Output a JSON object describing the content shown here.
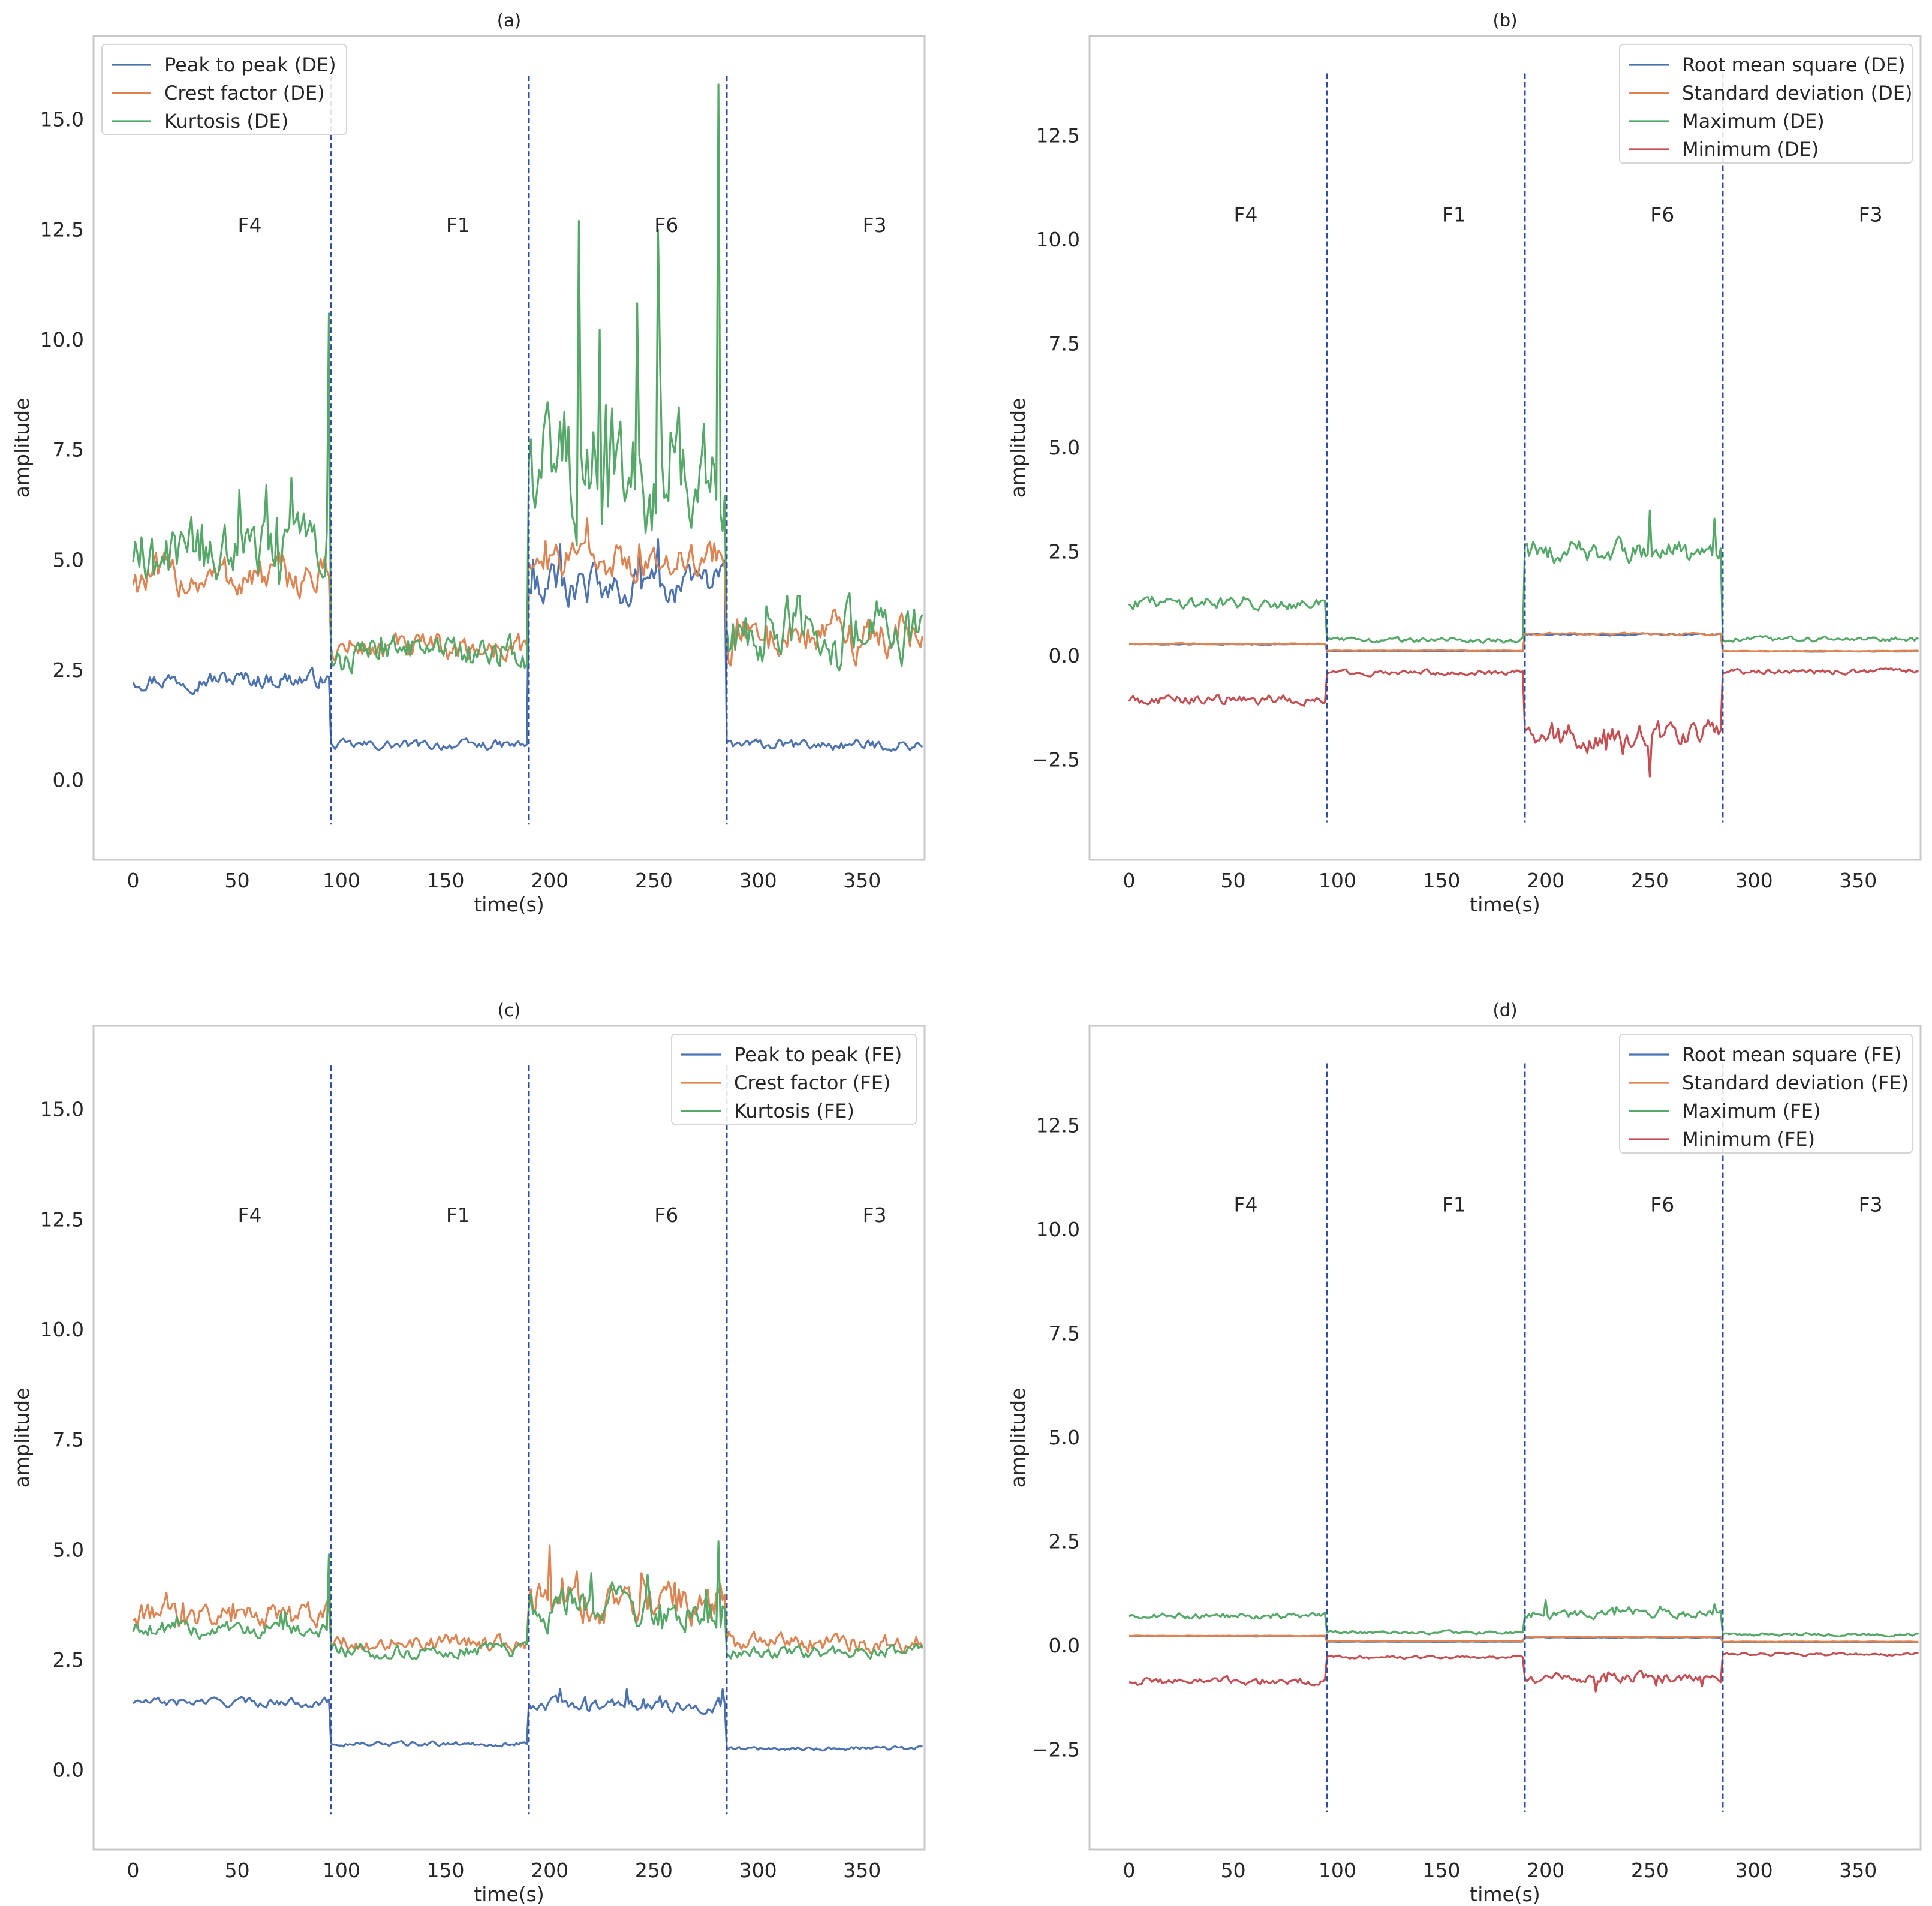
{
  "chart_data": [
    {
      "type": "line",
      "panel": "a",
      "title": "(a)",
      "xlabel": "time(s)",
      "ylabel": "amplitude",
      "xlim": [
        -19,
        380
      ],
      "ylim": [
        -1.8,
        16.9
      ],
      "xticks": [
        0,
        50,
        100,
        150,
        200,
        250,
        300,
        350
      ],
      "yticks": [
        0.0,
        2.5,
        5.0,
        7.5,
        10.0,
        12.5,
        15.0
      ],
      "ytick_labels": [
        "0.0",
        "2.5",
        "5.0",
        "7.5",
        "10.0",
        "12.5",
        "15.0"
      ],
      "legend_position": "upper-left",
      "grid": false,
      "segment_boundaries": [
        95,
        190,
        285
      ],
      "boundary_range": [
        -1.0,
        16.0
      ],
      "segment_labels": [
        {
          "label": "F4",
          "x": 56,
          "y": 12.6
        },
        {
          "label": "F1",
          "x": 156,
          "y": 12.6
        },
        {
          "label": "F6",
          "x": 256,
          "y": 12.6
        },
        {
          "label": "F3",
          "x": 356,
          "y": 12.6
        }
      ],
      "series": [
        {
          "name": "Peak to peak (DE)",
          "color": "#4c72b0",
          "segments": [
            {
              "mean": 2.3,
              "noise": 0.17,
              "spike": 0
            },
            {
              "mean": 0.8,
              "noise": 0.09,
              "spike": 0
            },
            {
              "mean": 4.4,
              "noise": 0.35,
              "spike": 0.6
            },
            {
              "mean": 0.8,
              "noise": 0.1,
              "spike": 0
            }
          ]
        },
        {
          "name": "Crest factor (DE)",
          "color": "#dd8452",
          "segments": [
            {
              "mean": 4.6,
              "noise": 0.38,
              "spike": 0
            },
            {
              "mean": 3.0,
              "noise": 0.25,
              "spike": 0
            },
            {
              "mean": 5.0,
              "noise": 0.32,
              "spike": 0.8
            },
            {
              "mean": 3.3,
              "noise": 0.42,
              "spike": 0
            }
          ]
        },
        {
          "name": "Kurtosis (DE)",
          "color": "#55a868",
          "segments": [
            {
              "mean": 5.2,
              "noise": 0.55,
              "spike": 1.2
            },
            {
              "mean": 2.9,
              "noise": 0.3,
              "spike": 0.3
            },
            {
              "mean": 7.2,
              "noise": 1.2,
              "spike": 6.0
            },
            {
              "mean": 3.4,
              "noise": 0.55,
              "spike": 0.8
            }
          ],
          "peaks": [
            {
              "x": 94,
              "y": 10.6
            },
            {
              "x": 281,
              "y": 15.8
            },
            {
              "x": 252,
              "y": 12.5
            },
            {
              "x": 214,
              "y": 12.7
            }
          ]
        }
      ]
    },
    {
      "type": "line",
      "panel": "b",
      "title": "(b)",
      "xlabel": "time(s)",
      "ylabel": "amplitude",
      "xlim": [
        -19,
        380
      ],
      "ylim": [
        -4.9,
        14.9
      ],
      "xticks": [
        0,
        50,
        100,
        150,
        200,
        250,
        300,
        350
      ],
      "yticks": [
        -2.5,
        0.0,
        2.5,
        5.0,
        7.5,
        10.0,
        12.5
      ],
      "ytick_labels": [
        "−2.5",
        "0.0",
        "2.5",
        "5.0",
        "7.5",
        "10.0",
        "12.5"
      ],
      "legend_position": "upper-right",
      "grid": false,
      "segment_boundaries": [
        95,
        190,
        285
      ],
      "boundary_range": [
        -4.0,
        14.0
      ],
      "segment_labels": [
        {
          "label": "F4",
          "x": 56,
          "y": 10.6
        },
        {
          "label": "F1",
          "x": 156,
          "y": 10.6
        },
        {
          "label": "F6",
          "x": 256,
          "y": 10.6
        },
        {
          "label": "F3",
          "x": 356,
          "y": 10.6
        }
      ],
      "series": [
        {
          "name": "Root mean square (DE)",
          "color": "#4c72b0",
          "segments": [
            {
              "mean": 0.28,
              "noise": 0.01,
              "spike": 0
            },
            {
              "mean": 0.12,
              "noise": 0.005,
              "spike": 0
            },
            {
              "mean": 0.52,
              "noise": 0.02,
              "spike": 0
            },
            {
              "mean": 0.11,
              "noise": 0.005,
              "spike": 0
            }
          ]
        },
        {
          "name": "Standard deviation (DE)",
          "color": "#dd8452",
          "segments": [
            {
              "mean": 0.29,
              "noise": 0.01,
              "spike": 0
            },
            {
              "mean": 0.13,
              "noise": 0.006,
              "spike": 0
            },
            {
              "mean": 0.53,
              "noise": 0.02,
              "spike": 0
            },
            {
              "mean": 0.12,
              "noise": 0.006,
              "spike": 0
            }
          ]
        },
        {
          "name": "Maximum (DE)",
          "color": "#55a868",
          "segments": [
            {
              "mean": 1.3,
              "noise": 0.13,
              "spike": 0
            },
            {
              "mean": 0.38,
              "noise": 0.05,
              "spike": 0
            },
            {
              "mean": 2.5,
              "noise": 0.22,
              "spike": 0.5
            },
            {
              "mean": 0.4,
              "noise": 0.05,
              "spike": 0
            }
          ],
          "peaks": [
            {
              "x": 250,
              "y": 3.5
            },
            {
              "x": 281,
              "y": 3.3
            }
          ]
        },
        {
          "name": "Minimum (DE)",
          "color": "#c44e52",
          "segments": [
            {
              "mean": -1.05,
              "noise": 0.1,
              "spike": 0
            },
            {
              "mean": -0.4,
              "noise": 0.05,
              "spike": 0
            },
            {
              "mean": -1.9,
              "noise": 0.25,
              "spike": -0.4
            },
            {
              "mean": -0.38,
              "noise": 0.05,
              "spike": 0
            }
          ],
          "peaks": [
            {
              "x": 250,
              "y": -2.9
            }
          ]
        }
      ]
    },
    {
      "type": "line",
      "panel": "c",
      "title": "(c)",
      "xlabel": "time(s)",
      "ylabel": "amplitude",
      "xlim": [
        -19,
        380
      ],
      "ylim": [
        -1.8,
        16.9
      ],
      "xticks": [
        0,
        50,
        100,
        150,
        200,
        250,
        300,
        350
      ],
      "yticks": [
        0.0,
        2.5,
        5.0,
        7.5,
        10.0,
        12.5,
        15.0
      ],
      "ytick_labels": [
        "0.0",
        "2.5",
        "5.0",
        "7.5",
        "10.0",
        "12.5",
        "15.0"
      ],
      "legend_position": "upper-right",
      "grid": false,
      "segment_boundaries": [
        95,
        190,
        285
      ],
      "boundary_range": [
        -1.0,
        16.0
      ],
      "segment_labels": [
        {
          "label": "F4",
          "x": 56,
          "y": 12.6
        },
        {
          "label": "F1",
          "x": 156,
          "y": 12.6
        },
        {
          "label": "F6",
          "x": 256,
          "y": 12.6
        },
        {
          "label": "F3",
          "x": 356,
          "y": 12.6
        }
      ],
      "series": [
        {
          "name": "Peak to peak (FE)",
          "color": "#4c72b0",
          "segments": [
            {
              "mean": 1.55,
              "noise": 0.08,
              "spike": 0
            },
            {
              "mean": 0.6,
              "noise": 0.04,
              "spike": 0
            },
            {
              "mean": 1.5,
              "noise": 0.12,
              "spike": 0.3
            },
            {
              "mean": 0.5,
              "noise": 0.04,
              "spike": 0
            }
          ]
        },
        {
          "name": "Crest factor (FE)",
          "color": "#dd8452",
          "segments": [
            {
              "mean": 3.5,
              "noise": 0.25,
              "spike": 0.5
            },
            {
              "mean": 2.9,
              "noise": 0.15,
              "spike": 0
            },
            {
              "mean": 3.8,
              "noise": 0.35,
              "spike": 0.6
            },
            {
              "mean": 2.9,
              "noise": 0.17,
              "spike": 0
            }
          ],
          "peaks": [
            {
              "x": 200,
              "y": 5.1
            }
          ]
        },
        {
          "name": "Kurtosis (FE)",
          "color": "#55a868",
          "segments": [
            {
              "mean": 3.2,
              "noise": 0.15,
              "spike": 0.3
            },
            {
              "mean": 2.7,
              "noise": 0.13,
              "spike": 0
            },
            {
              "mean": 3.6,
              "noise": 0.35,
              "spike": 0.6
            },
            {
              "mean": 2.7,
              "noise": 0.12,
              "spike": 0
            }
          ],
          "peaks": [
            {
              "x": 94,
              "y": 4.9
            },
            {
              "x": 281,
              "y": 5.2
            }
          ]
        }
      ]
    },
    {
      "type": "line",
      "panel": "d",
      "title": "(d)",
      "xlabel": "time(s)",
      "ylabel": "amplitude",
      "xlim": [
        -19,
        380
      ],
      "ylim": [
        -4.9,
        14.9
      ],
      "xticks": [
        0,
        50,
        100,
        150,
        200,
        250,
        300,
        350
      ],
      "yticks": [
        -2.5,
        0.0,
        2.5,
        5.0,
        7.5,
        10.0,
        12.5
      ],
      "ytick_labels": [
        "−2.5",
        "0.0",
        "2.5",
        "5.0",
        "7.5",
        "10.0",
        "12.5"
      ],
      "legend_position": "upper-right",
      "grid": false,
      "segment_boundaries": [
        95,
        190,
        285
      ],
      "boundary_range": [
        -4.0,
        14.0
      ],
      "segment_labels": [
        {
          "label": "F4",
          "x": 56,
          "y": 10.6
        },
        {
          "label": "F1",
          "x": 156,
          "y": 10.6
        },
        {
          "label": "F6",
          "x": 256,
          "y": 10.6
        },
        {
          "label": "F3",
          "x": 356,
          "y": 10.6
        }
      ],
      "series": [
        {
          "name": "Root mean square (FE)",
          "color": "#4c72b0",
          "segments": [
            {
              "mean": 0.23,
              "noise": 0.005,
              "spike": 0
            },
            {
              "mean": 0.1,
              "noise": 0.004,
              "spike": 0
            },
            {
              "mean": 0.2,
              "noise": 0.006,
              "spike": 0
            },
            {
              "mean": 0.09,
              "noise": 0.004,
              "spike": 0
            }
          ]
        },
        {
          "name": "Standard deviation (FE)",
          "color": "#dd8452",
          "segments": [
            {
              "mean": 0.24,
              "noise": 0.005,
              "spike": 0
            },
            {
              "mean": 0.11,
              "noise": 0.004,
              "spike": 0
            },
            {
              "mean": 0.21,
              "noise": 0.006,
              "spike": 0
            },
            {
              "mean": 0.1,
              "noise": 0.004,
              "spike": 0
            }
          ]
        },
        {
          "name": "Maximum (FE)",
          "color": "#55a868",
          "segments": [
            {
              "mean": 0.72,
              "noise": 0.06,
              "spike": 0
            },
            {
              "mean": 0.32,
              "noise": 0.03,
              "spike": 0
            },
            {
              "mean": 0.75,
              "noise": 0.09,
              "spike": 0.15
            },
            {
              "mean": 0.27,
              "noise": 0.03,
              "spike": 0
            }
          ],
          "peaks": [
            {
              "x": 200,
              "y": 1.1
            },
            {
              "x": 281,
              "y": 1.0
            }
          ]
        },
        {
          "name": "Minimum (FE)",
          "color": "#c44e52",
          "segments": [
            {
              "mean": -0.85,
              "noise": 0.08,
              "spike": 0
            },
            {
              "mean": -0.28,
              "noise": 0.03,
              "spike": 0
            },
            {
              "mean": -0.75,
              "noise": 0.1,
              "spike": -0.2
            },
            {
              "mean": -0.2,
              "noise": 0.03,
              "spike": 0
            }
          ],
          "peaks": [
            {
              "x": 224,
              "y": -1.1
            }
          ]
        }
      ]
    }
  ]
}
